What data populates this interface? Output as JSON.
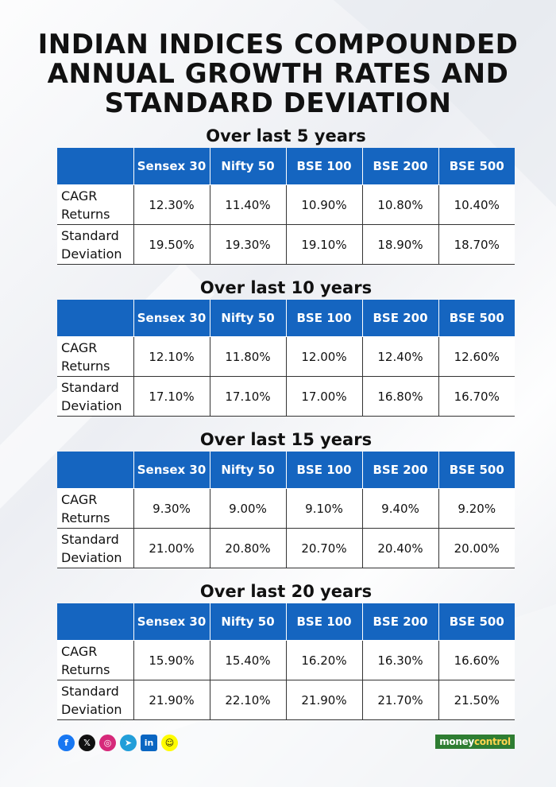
{
  "title": [
    "INDIAN INDICES COMPOUNDED",
    "ANNUAL GROWTH RATES AND",
    "STANDARD DEVIATION"
  ],
  "columns": [
    "",
    "Sensex 30",
    "Nifty 50",
    "BSE 100",
    "BSE 200",
    "BSE 500"
  ],
  "row_labels": {
    "cagr": [
      "CAGR",
      "Returns"
    ],
    "std": [
      "Standard",
      "Deviation"
    ]
  },
  "sections": [
    {
      "title": "Over last 5 years",
      "cagr": [
        "12.30%",
        "11.40%",
        "10.90%",
        "10.80%",
        "10.40%"
      ],
      "std": [
        "19.50%",
        "19.30%",
        "19.10%",
        "18.90%",
        "18.70%"
      ]
    },
    {
      "title": "Over last 10 years",
      "cagr": [
        "12.10%",
        "11.80%",
        "12.00%",
        "12.40%",
        "12.60%"
      ],
      "std": [
        "17.10%",
        "17.10%",
        "17.00%",
        "16.80%",
        "16.70%"
      ]
    },
    {
      "title": "Over last 15 years",
      "cagr": [
        "9.30%",
        "9.00%",
        "9.10%",
        "9.40%",
        "9.20%"
      ],
      "std": [
        "21.00%",
        "20.80%",
        "20.70%",
        "20.40%",
        "20.00%"
      ]
    },
    {
      "title": "Over last 20 years",
      "cagr": [
        "15.90%",
        "15.40%",
        "16.20%",
        "16.30%",
        "16.60%"
      ],
      "std": [
        "21.90%",
        "22.10%",
        "21.90%",
        "21.70%",
        "21.50%"
      ]
    }
  ],
  "footer": {
    "social_icons": [
      "facebook-icon",
      "x-icon",
      "instagram-icon",
      "telegram-icon",
      "linkedin-icon",
      "snapchat-icon"
    ],
    "logo": [
      "money",
      "control"
    ]
  },
  "colors": {
    "header_bg": "#1565c0",
    "logo_bg": "#2e7d32"
  }
}
